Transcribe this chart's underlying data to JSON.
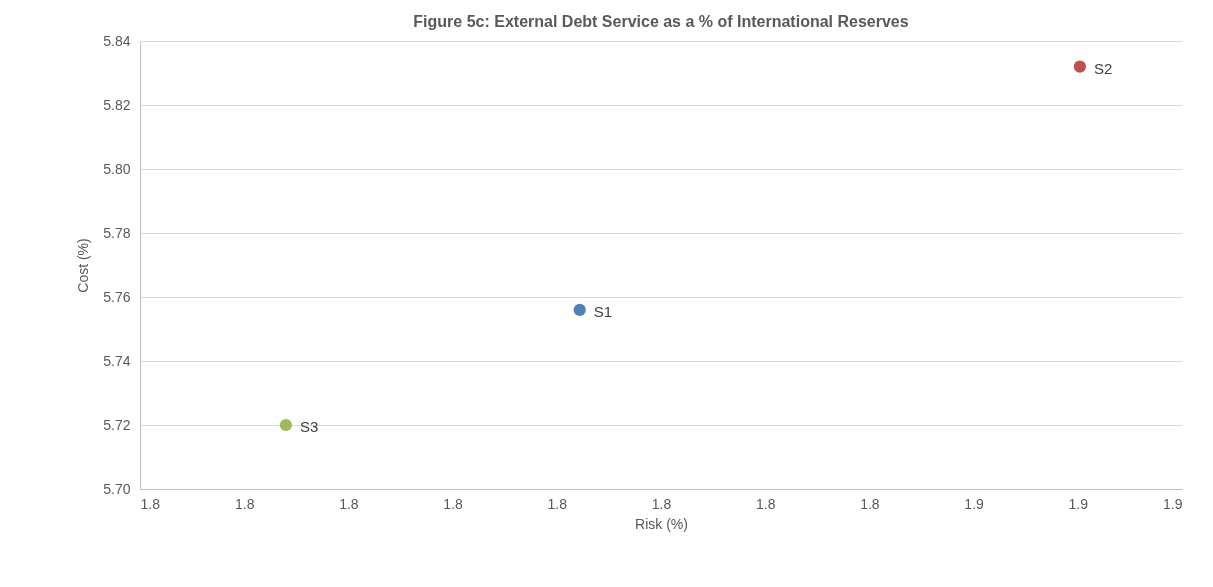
{
  "chart_data": {
    "type": "scatter",
    "title": "Figure 5c: External Debt Service as a % of International Reserves",
    "xlabel": "Risk (%)",
    "ylabel": "Cost (%)",
    "xlim": [
      1.81,
      1.86
    ],
    "xticks": [
      {
        "value": 1.81,
        "label": "1.8"
      },
      {
        "value": 1.815,
        "label": "1.8"
      },
      {
        "value": 1.82,
        "label": "1.8"
      },
      {
        "value": 1.825,
        "label": "1.8"
      },
      {
        "value": 1.83,
        "label": "1.8"
      },
      {
        "value": 1.835,
        "label": "1.8"
      },
      {
        "value": 1.84,
        "label": "1.8"
      },
      {
        "value": 1.845,
        "label": "1.8"
      },
      {
        "value": 1.85,
        "label": "1.9"
      },
      {
        "value": 1.855,
        "label": "1.9"
      },
      {
        "value": 1.86,
        "label": "1.9"
      }
    ],
    "ylim": [
      5.7,
      5.84
    ],
    "yticks": [
      {
        "value": 5.7,
        "label": "5.70"
      },
      {
        "value": 5.72,
        "label": "5.72"
      },
      {
        "value": 5.74,
        "label": "5.74"
      },
      {
        "value": 5.76,
        "label": "5.76"
      },
      {
        "value": 5.78,
        "label": "5.78"
      },
      {
        "value": 5.8,
        "label": "5.80"
      },
      {
        "value": 5.82,
        "label": "5.82"
      },
      {
        "value": 5.84,
        "label": "5.84"
      }
    ],
    "grid": "y",
    "legend": false,
    "marker": "circle",
    "series": [
      {
        "name": "S1",
        "color": "#4f81bd",
        "x": [
          1.8311
        ],
        "values": [
          5.756
        ]
      },
      {
        "name": "S2",
        "color": "#c0504d",
        "x": [
          1.8551
        ],
        "values": [
          5.832
        ]
      },
      {
        "name": "S3",
        "color": "#9bbb59",
        "x": [
          1.817
        ],
        "values": [
          5.72
        ]
      }
    ]
  }
}
